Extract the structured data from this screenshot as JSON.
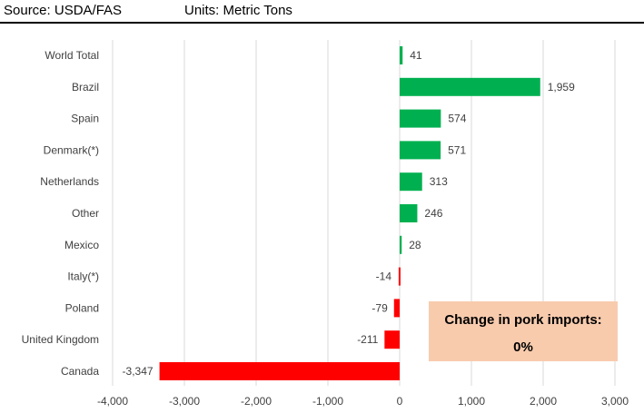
{
  "header": {
    "source": "Source: USDA/FAS",
    "units": "Units: Metric Tons"
  },
  "callout": {
    "line1": "Change in pork imports:",
    "line2": "0%"
  },
  "colors": {
    "positive": "#00b050",
    "negative": "#ff0000",
    "grid": "#d9d9d9",
    "callout_bg": "#f8cbad"
  },
  "chart_data": {
    "type": "bar",
    "orientation": "horizontal",
    "categories": [
      "World Total",
      "Brazil",
      "Spain",
      "Denmark(*)",
      "Netherlands",
      "Other",
      "Mexico",
      "Italy(*)",
      "Poland",
      "United Kingdom",
      "Canada"
    ],
    "values": [
      41,
      1959,
      574,
      571,
      313,
      246,
      28,
      -14,
      -79,
      -211,
      -3347
    ],
    "data_labels": [
      "41",
      "1,959",
      "574",
      "571",
      "313",
      "246",
      "28",
      "-14",
      "-79",
      "-211",
      "-3,347"
    ],
    "xlim": [
      -4000,
      3000
    ],
    "xticks": [
      -4000,
      -3000,
      -2000,
      -1000,
      0,
      1000,
      2000,
      3000
    ],
    "xtick_labels": [
      "-4,000",
      "-3,000",
      "-2,000",
      "-1,000",
      "0",
      "1,000",
      "2,000",
      "3,000"
    ],
    "grid": true,
    "title": "",
    "xlabel": "",
    "ylabel": ""
  }
}
